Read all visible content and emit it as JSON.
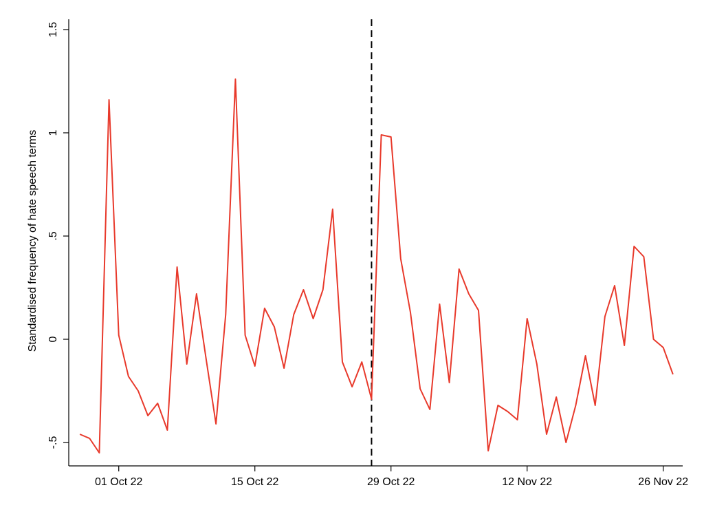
{
  "chart_data": {
    "type": "line",
    "y_label": "Standardised frequency of hate speech terms",
    "x": [
      "2022-09-27",
      "2022-09-28",
      "2022-09-29",
      "2022-09-30",
      "2022-10-01",
      "2022-10-02",
      "2022-10-03",
      "2022-10-04",
      "2022-10-05",
      "2022-10-06",
      "2022-10-07",
      "2022-10-08",
      "2022-10-09",
      "2022-10-10",
      "2022-10-11",
      "2022-10-12",
      "2022-10-13",
      "2022-10-14",
      "2022-10-15",
      "2022-10-16",
      "2022-10-17",
      "2022-10-18",
      "2022-10-19",
      "2022-10-20",
      "2022-10-21",
      "2022-10-22",
      "2022-10-23",
      "2022-10-24",
      "2022-10-25",
      "2022-10-26",
      "2022-10-27",
      "2022-10-28",
      "2022-10-29",
      "2022-10-30",
      "2022-10-31",
      "2022-11-01",
      "2022-11-02",
      "2022-11-03",
      "2022-11-04",
      "2022-11-05",
      "2022-11-06",
      "2022-11-07",
      "2022-11-08",
      "2022-11-09",
      "2022-11-10",
      "2022-11-11",
      "2022-11-12",
      "2022-11-13",
      "2022-11-14",
      "2022-11-15",
      "2022-11-16",
      "2022-11-17",
      "2022-11-18",
      "2022-11-19",
      "2022-11-20",
      "2022-11-21",
      "2022-11-22",
      "2022-11-23",
      "2022-11-24",
      "2022-11-25",
      "2022-11-26",
      "2022-11-27"
    ],
    "series": [
      {
        "name": "hate speech",
        "color": "#e8392b",
        "values": [
          -0.46,
          -0.48,
          -0.55,
          1.16,
          0.02,
          -0.18,
          -0.25,
          -0.37,
          -0.31,
          -0.44,
          0.35,
          -0.12,
          0.22,
          -0.1,
          -0.41,
          0.12,
          1.26,
          0.02,
          -0.13,
          0.15,
          0.06,
          -0.14,
          0.12,
          0.24,
          0.1,
          0.24,
          0.63,
          -0.11,
          -0.23,
          -0.11,
          -0.29,
          0.99,
          0.98,
          0.39,
          0.13,
          -0.24,
          -0.34,
          0.17,
          -0.21,
          0.34,
          0.22,
          0.14,
          -0.54,
          -0.32,
          -0.35,
          -0.39,
          0.1,
          -0.12,
          -0.46,
          -0.28,
          -0.5,
          -0.32,
          -0.08,
          -0.32,
          0.11,
          0.26,
          -0.03,
          0.45,
          0.4,
          0,
          -0.04,
          -0.17
        ]
      }
    ],
    "xlim": [
      "2022-09-26",
      "2022-11-28"
    ],
    "xticks": [
      {
        "value": "2022-10-01",
        "label": "01 Oct 22"
      },
      {
        "value": "2022-10-15",
        "label": "15 Oct 22"
      },
      {
        "value": "2022-10-29",
        "label": "29 Oct 22"
      },
      {
        "value": "2022-11-12",
        "label": "12 Nov 22"
      },
      {
        "value": "2022-11-26",
        "label": "26 Nov 22"
      }
    ],
    "ylim": [
      -0.6,
      1.55
    ],
    "yticks": [
      {
        "value": -0.5,
        "label": "-.5"
      },
      0,
      {
        "value": 0.5,
        "label": ".5"
      },
      1,
      1.5
    ],
    "vline": {
      "x": "2022-10-27",
      "color": "#000",
      "style": "dashed"
    }
  }
}
